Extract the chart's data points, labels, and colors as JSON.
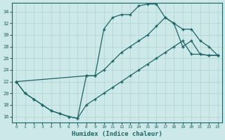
{
  "xlabel": "Humidex (Indice chaleur)",
  "bg_color": "#cde8e8",
  "grid_color": "#b0d0d0",
  "line_color": "#1a6666",
  "xlim": [
    -0.5,
    23.5
  ],
  "ylim": [
    15.0,
    35.5
  ],
  "xticks": [
    0,
    1,
    2,
    3,
    4,
    5,
    6,
    7,
    8,
    9,
    10,
    11,
    12,
    13,
    14,
    15,
    16,
    17,
    18,
    19,
    20,
    21,
    22,
    23
  ],
  "yticks": [
    16,
    18,
    20,
    22,
    24,
    26,
    28,
    30,
    32,
    34
  ],
  "line1_x": [
    0,
    1,
    2,
    3,
    4,
    5,
    6,
    7,
    8,
    9,
    10,
    11,
    12,
    13,
    14,
    15,
    16,
    17,
    18,
    19,
    20,
    21,
    22,
    23
  ],
  "line1_y": [
    22,
    20,
    19,
    18,
    17,
    16.5,
    16,
    15.7,
    23,
    23,
    31,
    33,
    33.5,
    33.5,
    35,
    35.3,
    35.3,
    33,
    32,
    28,
    29,
    26.7,
    26.5,
    26.5
  ],
  "line2_x": [
    0,
    8,
    9,
    10,
    11,
    12,
    13,
    14,
    15,
    16,
    17,
    18,
    19,
    20,
    21,
    22,
    23
  ],
  "line2_y": [
    22,
    23,
    23,
    24,
    25.5,
    27,
    28,
    29,
    30,
    31.5,
    33,
    32,
    31,
    31,
    29,
    28,
    26.5
  ],
  "line3_x": [
    0,
    1,
    2,
    3,
    4,
    5,
    6,
    7,
    8,
    9,
    10,
    11,
    12,
    13,
    14,
    15,
    16,
    17,
    18,
    19,
    20,
    21,
    22,
    23
  ],
  "line3_y": [
    22,
    20,
    19,
    18,
    17,
    16.5,
    16,
    15.7,
    18,
    19,
    20,
    21,
    22,
    23,
    24,
    25,
    26,
    27,
    28,
    29,
    26.7,
    26.7,
    26.5,
    26.5
  ]
}
